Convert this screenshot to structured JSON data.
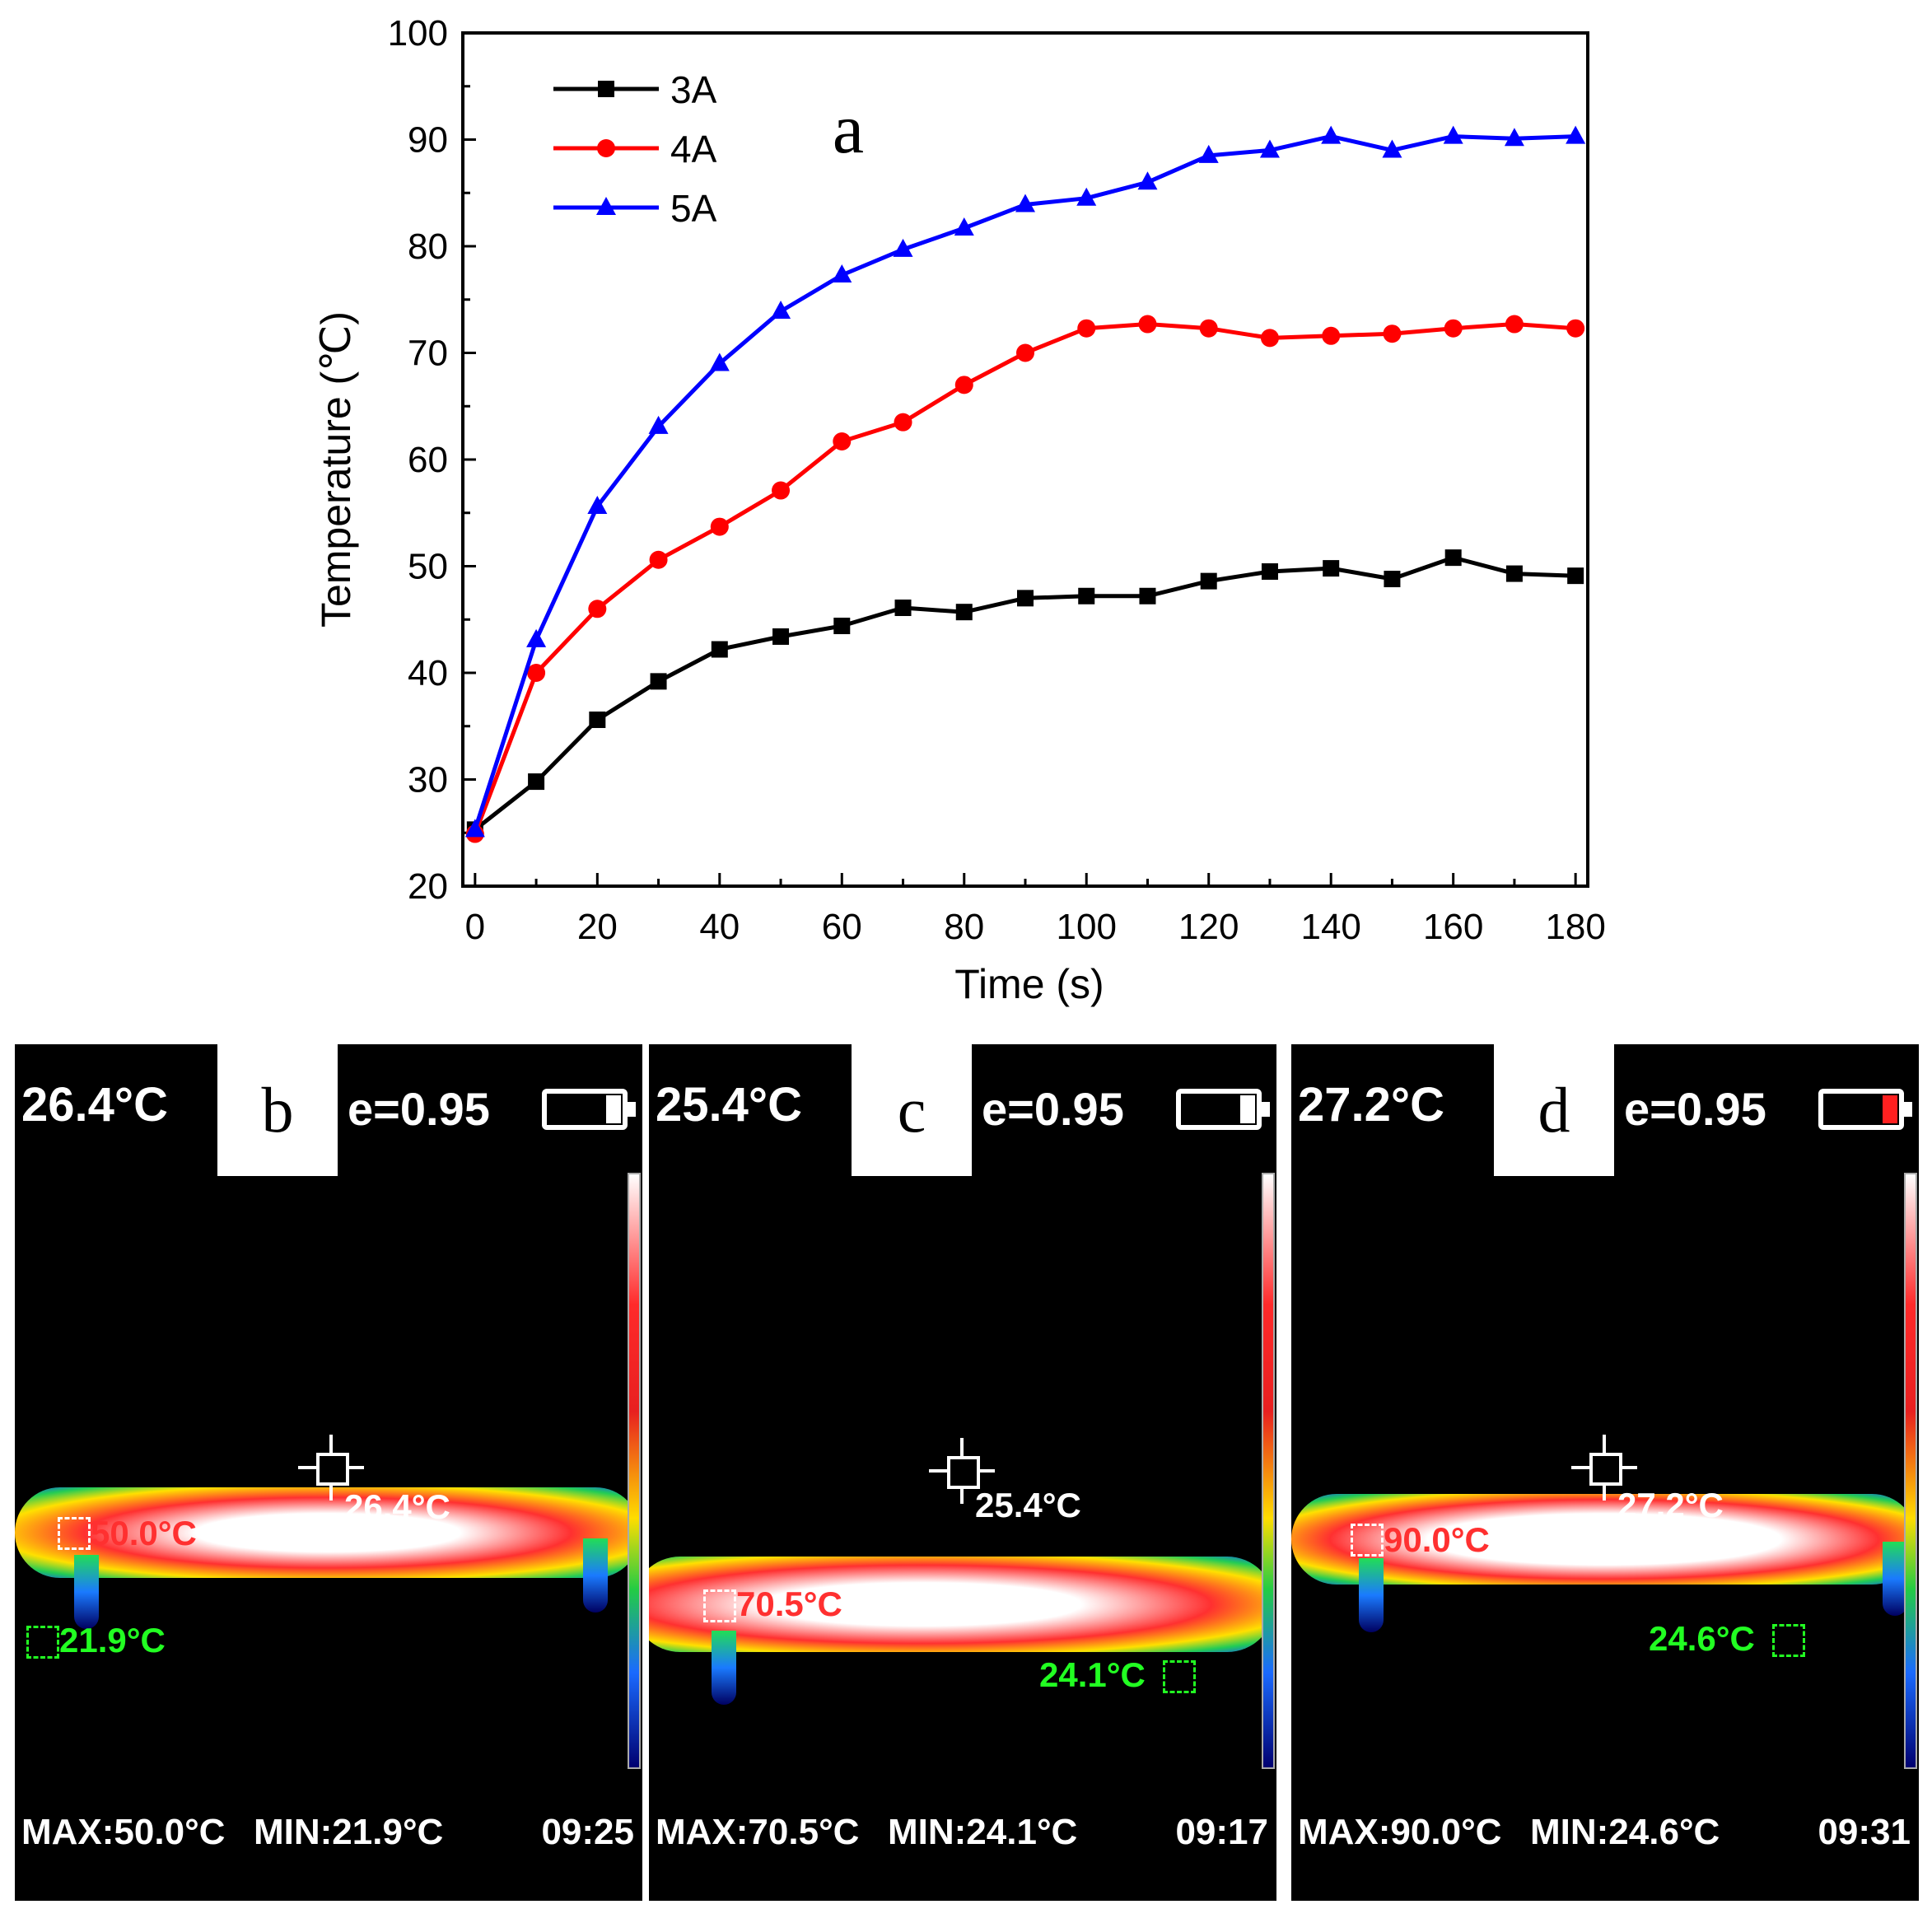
{
  "chart_data": {
    "type": "line",
    "panel_label": "a",
    "xlabel": "Time (s)",
    "ylabel": "Temperature (℃)",
    "xlim": [
      -2,
      182
    ],
    "ylim": [
      20,
      100
    ],
    "x_ticks": [
      0,
      20,
      40,
      60,
      80,
      100,
      120,
      140,
      160,
      180
    ],
    "y_ticks": [
      20,
      30,
      40,
      50,
      60,
      70,
      80,
      90,
      100
    ],
    "x": [
      0,
      10,
      20,
      30,
      40,
      50,
      60,
      70,
      80,
      90,
      100,
      110,
      120,
      130,
      140,
      150,
      160,
      170,
      180
    ],
    "legend_position": "top-left",
    "series": [
      {
        "name": "3A",
        "color": "#000000",
        "marker": "square",
        "values": [
          25.3,
          29.8,
          35.6,
          39.2,
          42.2,
          43.4,
          44.4,
          46.1,
          45.7,
          47.0,
          47.2,
          47.2,
          48.6,
          49.5,
          49.8,
          48.8,
          50.8,
          49.3,
          49.1
        ]
      },
      {
        "name": "4A",
        "color": "#ff0000",
        "marker": "circle",
        "values": [
          24.9,
          40.0,
          46.0,
          50.6,
          53.7,
          57.1,
          61.7,
          63.5,
          67.0,
          70.0,
          72.3,
          72.7,
          72.3,
          71.4,
          71.6,
          71.8,
          72.3,
          72.7,
          72.3
        ]
      },
      {
        "name": "5A",
        "color": "#0000ff",
        "marker": "triangle",
        "values": [
          25.3,
          43.1,
          55.6,
          63.1,
          69.0,
          73.9,
          77.3,
          79.7,
          81.7,
          83.9,
          84.5,
          86.0,
          88.5,
          89.0,
          90.3,
          89.0,
          90.3,
          90.1,
          90.3
        ]
      }
    ]
  },
  "thermal_images": [
    {
      "label": "b",
      "center_temp": "26.4°C",
      "emissivity": "e=0.95",
      "max_label": "MAX:50.0°C",
      "min_label": "MIN:21.9°C",
      "time": "09:25",
      "hot_spot": "50.0°C",
      "center_readout": "26.4°C",
      "cold_spot": "21.9°C",
      "battery_low": false
    },
    {
      "label": "c",
      "center_temp": "25.4°C",
      "emissivity": "e=0.95",
      "max_label": "MAX:70.5°C",
      "min_label": "MIN:24.1°C",
      "time": "09:17",
      "hot_spot": "70.5°C",
      "center_readout": "25.4°C",
      "cold_spot": "24.1°C",
      "battery_low": false
    },
    {
      "label": "d",
      "center_temp": "27.2°C",
      "emissivity": "e=0.95",
      "max_label": "MAX:90.0°C",
      "min_label": "MIN:24.6°C",
      "time": "09:31",
      "hot_spot": "90.0°C",
      "center_readout": "27.2°C",
      "cold_spot": "24.6°C",
      "battery_low": true
    }
  ]
}
